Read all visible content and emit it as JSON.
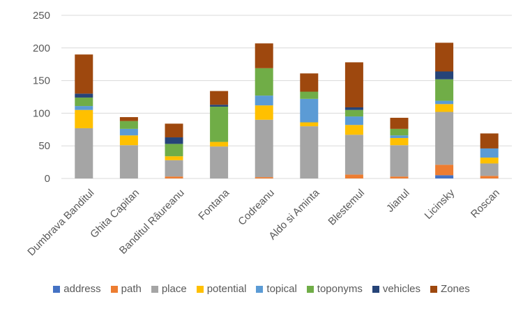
{
  "chart_data": {
    "type": "bar",
    "stacked": true,
    "categories": [
      "Dumbrava Banditul",
      "Ghita Capitan",
      "Banditul Râureanu",
      "Fontana",
      "Codreanu",
      "Aldo si Aminta",
      "Blestemul",
      "Jianul",
      "Licinsky",
      "Roscan"
    ],
    "series": [
      {
        "name": "address",
        "color": "#4472C4",
        "values": [
          0,
          0,
          0,
          0,
          0,
          0,
          0,
          0,
          5,
          0
        ]
      },
      {
        "name": "path",
        "color": "#ED7D31",
        "values": [
          0,
          0,
          3,
          0,
          2,
          0,
          6,
          3,
          16,
          4
        ]
      },
      {
        "name": "place",
        "color": "#A5A5A5",
        "values": [
          77,
          51,
          25,
          49,
          88,
          80,
          61,
          48,
          81,
          19
        ]
      },
      {
        "name": "potential",
        "color": "#FFC000",
        "values": [
          28,
          15,
          6,
          7,
          22,
          6,
          15,
          11,
          12,
          9
        ]
      },
      {
        "name": "topical",
        "color": "#5B9BD5",
        "values": [
          6,
          10,
          0,
          0,
          15,
          36,
          13,
          4,
          5,
          14
        ]
      },
      {
        "name": "toponyms",
        "color": "#70AD47",
        "values": [
          13,
          12,
          19,
          54,
          42,
          11,
          10,
          10,
          33,
          0
        ]
      },
      {
        "name": "vehicles",
        "color": "#264478",
        "values": [
          6,
          0,
          10,
          3,
          0,
          0,
          4,
          0,
          12,
          0
        ]
      },
      {
        "name": "Zones",
        "color": "#9E480E",
        "values": [
          60,
          6,
          21,
          21,
          38,
          28,
          69,
          17,
          44,
          23
        ]
      }
    ],
    "ylim": [
      0,
      250
    ],
    "yticks": [
      0,
      50,
      100,
      150,
      200,
      250
    ],
    "grid": true,
    "legend": "bottom"
  }
}
